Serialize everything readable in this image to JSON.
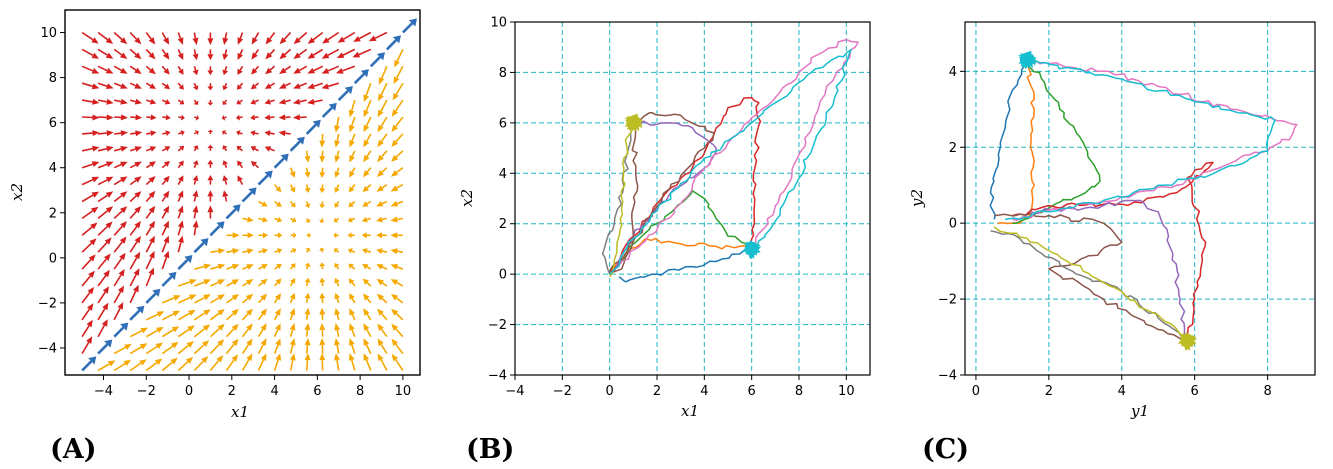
{
  "chart_data": [
    {
      "panel": "(A)",
      "type": "quiver",
      "xlabel": "x1",
      "ylabel": "x2",
      "xlim": [
        -5.8,
        10.8
      ],
      "ylim": [
        -5.2,
        11
      ],
      "xticks": [
        "−4",
        "−2",
        "0",
        "2",
        "4",
        "6",
        "8",
        "10"
      ],
      "xtick_values": [
        -4,
        -2,
        0,
        2,
        4,
        6,
        8,
        10
      ],
      "yticks": [
        "−4",
        "−2",
        "0",
        "2",
        "4",
        "6",
        "8",
        "10"
      ],
      "ytick_values": [
        -4,
        -2,
        0,
        2,
        4,
        6,
        8,
        10
      ],
      "grid": false,
      "field": {
        "x_start": -5,
        "x_end": 10,
        "y_start": -5,
        "y_end": 10,
        "step": 0.75,
        "attractors": [
          [
            1,
            6
          ],
          [
            6,
            1
          ]
        ],
        "regions": [
          {
            "rule": "x2 - x1 > 0.45",
            "color": "#d62020",
            "toward": [
              1,
              6
            ]
          },
          {
            "rule": "|x2 - x1| <= 0.45",
            "color": "#2f6fb8",
            "direction": [
              1,
              1
            ]
          },
          {
            "rule": "x2 - x1 < -0.45",
            "color": "#f5a800",
            "toward": [
              6,
              1
            ]
          }
        ]
      }
    },
    {
      "panel": "(B)",
      "type": "line",
      "xlabel": "x1",
      "ylabel": "x2",
      "xlim": [
        -4,
        11
      ],
      "ylim": [
        -4,
        10
      ],
      "xticks": [
        "−4",
        "−2",
        "0",
        "2",
        "4",
        "6",
        "8",
        "10"
      ],
      "xtick_values": [
        -4,
        -2,
        0,
        2,
        4,
        6,
        8,
        10
      ],
      "yticks": [
        "−4",
        "−2",
        "0",
        "2",
        "4",
        "6",
        "8",
        "10"
      ],
      "ytick_values": [
        -4,
        -2,
        0,
        2,
        4,
        6,
        8,
        10
      ],
      "grid": true,
      "grid_color": "#20b6c4",
      "clusters": [
        {
          "x": 1.0,
          "y": 6.0,
          "color": "#bcbd22"
        },
        {
          "x": 6.0,
          "y": 1.0,
          "color": "#17becf"
        }
      ],
      "series": [
        {
          "color": "#1f77b4",
          "points": [
            [
              0.4,
              -0.1
            ],
            [
              0.7,
              -0.3
            ],
            [
              2.0,
              0.0
            ],
            [
              3.5,
              0.3
            ],
            [
              4.5,
              0.5
            ],
            [
              5.5,
              0.8
            ],
            [
              6.0,
              1.0
            ]
          ]
        },
        {
          "color": "#ff7f0e",
          "points": [
            [
              0.0,
              0.0
            ],
            [
              0.8,
              1.0
            ],
            [
              1.5,
              1.4
            ],
            [
              2.5,
              1.3
            ],
            [
              3.0,
              1.2
            ],
            [
              4.5,
              1.1
            ],
            [
              5.5,
              1.1
            ],
            [
              6.0,
              1.1
            ]
          ]
        },
        {
          "color": "#2ca02c",
          "points": [
            [
              0.0,
              0.0
            ],
            [
              1.0,
              1.2
            ],
            [
              2.0,
              2.0
            ],
            [
              3.0,
              2.8
            ],
            [
              3.5,
              3.3
            ],
            [
              4.0,
              3.0
            ],
            [
              4.5,
              2.2
            ],
            [
              5.0,
              1.5
            ],
            [
              5.8,
              1.2
            ],
            [
              6.0,
              1.0
            ]
          ]
        },
        {
          "color": "#d62728",
          "points": [
            [
              0.0,
              0.0
            ],
            [
              1.0,
              1.5
            ],
            [
              2.0,
              2.8
            ],
            [
              3.0,
              3.8
            ],
            [
              4.0,
              4.8
            ],
            [
              4.5,
              5.8
            ],
            [
              5.0,
              6.6
            ],
            [
              6.0,
              7.0
            ],
            [
              6.3,
              6.8
            ],
            [
              6.2,
              4.5
            ],
            [
              6.1,
              2.5
            ],
            [
              6.0,
              1.0
            ]
          ]
        },
        {
          "color": "#9467bd",
          "points": [
            [
              0.0,
              0.0
            ],
            [
              1.0,
              1.5
            ],
            [
              2.0,
              2.6
            ],
            [
              3.0,
              3.5
            ],
            [
              4.0,
              4.2
            ],
            [
              4.5,
              5.0
            ],
            [
              3.5,
              5.8
            ],
            [
              2.5,
              6.0
            ],
            [
              1.0,
              6.0
            ]
          ]
        },
        {
          "color": "#8c564b",
          "points": [
            [
              0.0,
              0.0
            ],
            [
              1.0,
              1.3
            ],
            [
              2.0,
              2.7
            ],
            [
              3.0,
              3.9
            ],
            [
              4.0,
              5.0
            ],
            [
              4.4,
              5.6
            ],
            [
              3.0,
              6.3
            ],
            [
              1.8,
              6.4
            ],
            [
              1.0,
              6.0
            ],
            [
              1.1,
              4.0
            ],
            [
              1.0,
              1.5
            ],
            [
              0.5,
              0.2
            ],
            [
              0.0,
              0.0
            ]
          ]
        },
        {
          "color": "#e377c2",
          "points": [
            [
              0.2,
              0.2
            ],
            [
              1.5,
              1.3
            ],
            [
              3.0,
              2.8
            ],
            [
              4.0,
              4.2
            ],
            [
              5.0,
              5.2
            ],
            [
              6.0,
              6.2
            ],
            [
              7.0,
              7.0
            ],
            [
              8.0,
              8.0
            ],
            [
              9.0,
              8.8
            ],
            [
              10.0,
              9.3
            ],
            [
              10.5,
              9.2
            ],
            [
              9.0,
              7.0
            ],
            [
              7.5,
              3.5
            ],
            [
              6.5,
              1.8
            ],
            [
              6.0,
              1.0
            ]
          ]
        },
        {
          "color": "#7f7f7f",
          "points": [
            [
              0.0,
              0.0
            ],
            [
              -0.3,
              0.8
            ],
            [
              0.2,
              2.0
            ],
            [
              0.6,
              3.5
            ],
            [
              0.8,
              5.0
            ],
            [
              1.0,
              6.0
            ]
          ]
        },
        {
          "color": "#bcbd22",
          "points": [
            [
              0.0,
              -0.1
            ],
            [
              0.3,
              1.0
            ],
            [
              0.5,
              2.6
            ],
            [
              0.6,
              4.2
            ],
            [
              0.8,
              5.5
            ],
            [
              1.0,
              6.0
            ]
          ]
        },
        {
          "color": "#17becf",
          "points": [
            [
              0.0,
              0.0
            ],
            [
              1.0,
              1.4
            ],
            [
              2.0,
              2.5
            ],
            [
              3.0,
              3.6
            ],
            [
              4.0,
              4.6
            ],
            [
              5.0,
              5.3
            ],
            [
              6.0,
              6.0
            ],
            [
              7.0,
              6.8
            ],
            [
              8.0,
              7.6
            ],
            [
              9.0,
              8.2
            ],
            [
              10.2,
              8.9
            ],
            [
              9.5,
              7.0
            ],
            [
              8.0,
              3.8
            ],
            [
              6.8,
              1.8
            ],
            [
              6.0,
              1.0
            ]
          ]
        }
      ]
    },
    {
      "panel": "(C)",
      "type": "line",
      "xlabel": "y1",
      "ylabel": "y2",
      "xlim": [
        -0.3,
        9.3
      ],
      "ylim": [
        -4,
        5.3
      ],
      "xticks": [
        "0",
        "2",
        "4",
        "6",
        "8"
      ],
      "xtick_values": [
        0,
        2,
        4,
        6,
        8
      ],
      "yticks": [
        "−4",
        "−2",
        "0",
        "2",
        "4"
      ],
      "ytick_values": [
        -4,
        -2,
        0,
        2,
        4
      ],
      "grid": true,
      "grid_color": "#20b6c4",
      "clusters": [
        {
          "x": 1.4,
          "y": 4.3,
          "color": "#17becf"
        },
        {
          "x": 5.8,
          "y": -3.1,
          "color": "#bcbd22"
        }
      ],
      "series": [
        {
          "color": "#1f77b4",
          "points": [
            [
              0.5,
              0.1
            ],
            [
              0.4,
              0.8
            ],
            [
              0.6,
              1.5
            ],
            [
              0.8,
              2.5
            ],
            [
              1.0,
              3.5
            ],
            [
              1.4,
              4.3
            ]
          ]
        },
        {
          "color": "#ff7f0e",
          "points": [
            [
              0.6,
              0.0
            ],
            [
              1.2,
              0.0
            ],
            [
              1.5,
              0.3
            ],
            [
              1.6,
              1.0
            ],
            [
              1.5,
              2.0
            ],
            [
              1.6,
              3.0
            ],
            [
              1.4,
              4.3
            ]
          ]
        },
        {
          "color": "#2ca02c",
          "points": [
            [
              1.0,
              0.0
            ],
            [
              2.0,
              0.4
            ],
            [
              3.0,
              0.8
            ],
            [
              3.4,
              1.1
            ],
            [
              3.0,
              2.0
            ],
            [
              2.3,
              3.0
            ],
            [
              1.8,
              3.8
            ],
            [
              1.4,
              4.3
            ]
          ]
        },
        {
          "color": "#d62728",
          "points": [
            [
              1.0,
              0.2
            ],
            [
              2.5,
              0.5
            ],
            [
              4.0,
              0.5
            ],
            [
              5.5,
              0.8
            ],
            [
              6.5,
              1.6
            ],
            [
              5.8,
              1.2
            ],
            [
              6.3,
              -0.5
            ],
            [
              6.0,
              -2.0
            ],
            [
              5.8,
              -3.1
            ]
          ]
        },
        {
          "color": "#9467bd",
          "points": [
            [
              1.5,
              0.3
            ],
            [
              3.0,
              0.4
            ],
            [
              4.5,
              0.6
            ],
            [
              5.0,
              0.3
            ],
            [
              5.4,
              -0.8
            ],
            [
              5.6,
              -2.0
            ],
            [
              5.8,
              -3.1
            ]
          ]
        },
        {
          "color": "#8c564b",
          "points": [
            [
              0.5,
              0.2
            ],
            [
              2.0,
              0.2
            ],
            [
              3.5,
              0.0
            ],
            [
              4.0,
              -0.5
            ],
            [
              3.0,
              -0.9
            ],
            [
              2.0,
              -1.2
            ],
            [
              3.5,
              -2.0
            ],
            [
              5.0,
              -2.8
            ],
            [
              5.8,
              -3.1
            ]
          ]
        },
        {
          "color": "#e377c2",
          "points": [
            [
              1.0,
              0.1
            ],
            [
              2.5,
              0.4
            ],
            [
              4.0,
              0.7
            ],
            [
              5.5,
              1.0
            ],
            [
              6.5,
              1.4
            ],
            [
              7.5,
              1.8
            ],
            [
              8.6,
              2.2
            ],
            [
              8.8,
              2.6
            ],
            [
              7.0,
              3.0
            ],
            [
              5.0,
              3.6
            ],
            [
              3.5,
              4.0
            ],
            [
              2.0,
              4.2
            ],
            [
              1.4,
              4.3
            ]
          ]
        },
        {
          "color": "#7f7f7f",
          "points": [
            [
              0.4,
              -0.2
            ],
            [
              1.2,
              -0.4
            ],
            [
              1.8,
              -0.8
            ],
            [
              2.5,
              -1.2
            ],
            [
              4.0,
              -1.8
            ],
            [
              5.0,
              -2.5
            ],
            [
              5.8,
              -3.1
            ]
          ]
        },
        {
          "color": "#bcbd22",
          "points": [
            [
              0.5,
              -0.1
            ],
            [
              1.5,
              -0.5
            ],
            [
              2.5,
              -1.0
            ],
            [
              4.0,
              -1.8
            ],
            [
              5.2,
              -2.6
            ],
            [
              5.8,
              -3.1
            ]
          ]
        },
        {
          "color": "#17becf",
          "points": [
            [
              0.8,
              0.1
            ],
            [
              2.0,
              0.3
            ],
            [
              3.5,
              0.6
            ],
            [
              5.0,
              1.0
            ],
            [
              6.5,
              1.3
            ],
            [
              8.0,
              1.9
            ],
            [
              8.2,
              2.7
            ],
            [
              6.0,
              3.2
            ],
            [
              4.0,
              3.8
            ],
            [
              2.5,
              4.1
            ],
            [
              1.4,
              4.3
            ]
          ]
        }
      ]
    }
  ]
}
